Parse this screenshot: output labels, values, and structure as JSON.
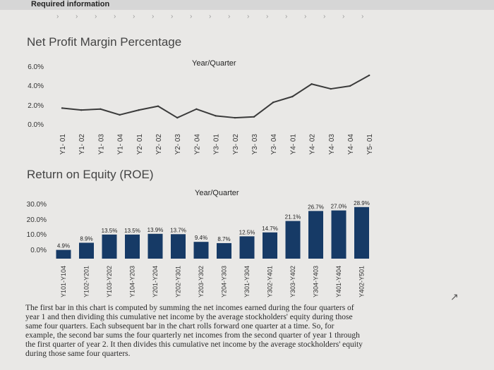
{
  "header": {
    "title": "Required information"
  },
  "chart_data": [
    {
      "type": "line",
      "title": "Net Profit Margin Percentage",
      "xlabel": "Year/Quarter",
      "ylabel": "",
      "y_ticks": [
        "6.0%",
        "4.0%",
        "2.0%",
        "0.0%"
      ],
      "ylim": [
        0,
        6.5
      ],
      "categories": [
        "Y1- 01",
        "Y1- 02",
        "Y1- 03",
        "Y1- 04",
        "Y2- 01",
        "Y2- 02",
        "Y2- 03",
        "Y2- 04",
        "Y3- 01",
        "Y3- 02",
        "Y3- 03",
        "Y3- 04",
        "Y4- 01",
        "Y4- 02",
        "Y4- 03",
        "Y4- 04",
        "Y5- 01"
      ],
      "values": [
        1.8,
        1.6,
        1.7,
        1.1,
        1.6,
        2.0,
        0.8,
        1.7,
        1.0,
        0.8,
        0.9,
        2.4,
        3.0,
        4.3,
        3.8,
        4.1,
        5.2
      ],
      "color": "#3a3a3a"
    },
    {
      "type": "bar",
      "title": "Return on Equity (ROE)",
      "xlabel": "Year/Quarter",
      "ylabel": "",
      "y_ticks": [
        "30.0%",
        "20.0%",
        "10.0%",
        "0.0%"
      ],
      "ylim": [
        0,
        30
      ],
      "categories": [
        "Y101-Y104",
        "Y102-Y201",
        "Y103-Y202",
        "Y104-Y203",
        "Y201-Y204",
        "Y202-Y301",
        "Y203-Y302",
        "Y204-Y303",
        "Y301-Y304",
        "Y302-Y401",
        "Y303-Y402",
        "Y304-Y403",
        "Y401-Y404",
        "Y402-Y501"
      ],
      "values": [
        4.9,
        8.9,
        13.5,
        13.5,
        13.9,
        13.7,
        9.4,
        8.7,
        12.5,
        14.7,
        21.1,
        26.7,
        27.0,
        28.9
      ],
      "data_labels": [
        "4.9%",
        "8.9%",
        "13.5%",
        "13.5%",
        "13.9%",
        "13.7%",
        "9.4%",
        "8.7%",
        "12.5%",
        "14.7%",
        "21.1%",
        "26.7%",
        "27.0%",
        "28.9%"
      ],
      "color": "#163a66"
    }
  ],
  "description": "The first bar in this chart is computed by summing the net incomes earned during the four quarters of year 1 and then dividing this cumulative net income by the average stockholders' equity during those same four quarters. Each subsequent bar in the chart rolls forward one quarter at a time. So, for example, the second bar sums the four quarterly net incomes from the second quarter of year 1 through the first quarter of year 2. It then divides this cumulative net income by the average stockholders' equity during those same four quarters."
}
